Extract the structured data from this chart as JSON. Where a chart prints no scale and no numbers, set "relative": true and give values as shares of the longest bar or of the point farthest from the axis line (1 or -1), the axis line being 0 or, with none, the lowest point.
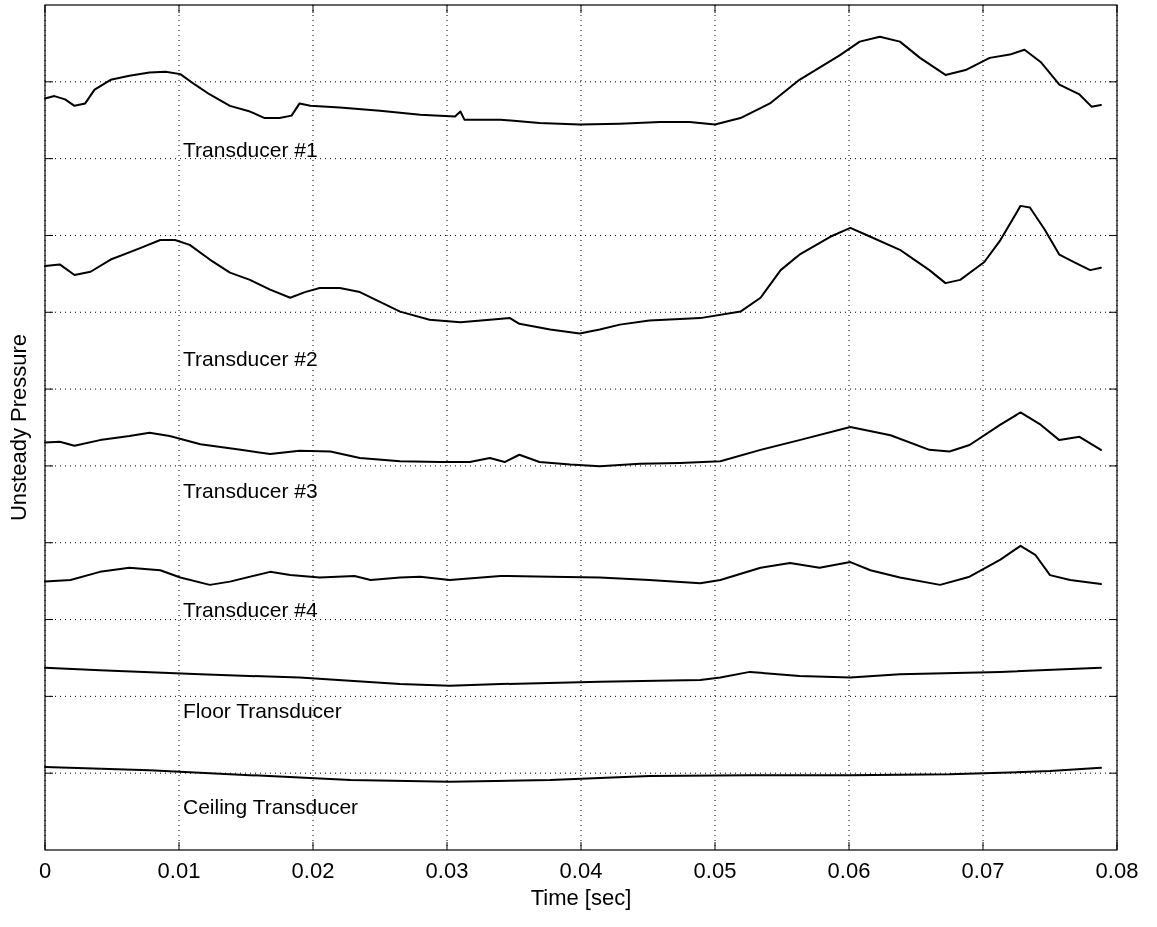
{
  "chart_data": {
    "type": "line",
    "xlabel": "Time [sec]",
    "ylabel": "Unsteady Pressure",
    "relative": true,
    "grid": true,
    "marker": "none",
    "line_style": "solid",
    "xlim": [
      0,
      0.08
    ],
    "xticks": [
      0,
      0.01,
      0.02,
      0.03,
      0.04,
      0.05,
      0.06,
      0.07,
      0.08
    ],
    "series": [
      {
        "name": "Transducer #1",
        "color": "#000000",
        "x": [
          0,
          0.0007,
          0.0015,
          0.0022,
          0.003,
          0.0037,
          0.0049,
          0.0063,
          0.0078,
          0.009,
          0.0101,
          0.0112,
          0.0123,
          0.0138,
          0.0153,
          0.0164,
          0.0175,
          0.0184,
          0.019,
          0.0198,
          0.022,
          0.025,
          0.028,
          0.0306,
          0.031,
          0.0313,
          0.034,
          0.0369,
          0.0399,
          0.0429,
          0.0459,
          0.0481,
          0.05,
          0.0519,
          0.0541,
          0.0563,
          0.0578,
          0.0593,
          0.0608,
          0.0623,
          0.0638,
          0.0653,
          0.0672,
          0.0687,
          0.0705,
          0.072,
          0.0731,
          0.0743,
          0.0757,
          0.0772,
          0.0781,
          0.0788
        ],
        "values": [
          0.924,
          0.927,
          0.923,
          0.915,
          0.918,
          0.935,
          0.947,
          0.952,
          0.956,
          0.957,
          0.954,
          0.941,
          0.929,
          0.915,
          0.908,
          0.9,
          0.9,
          0.903,
          0.918,
          0.915,
          0.913,
          0.909,
          0.904,
          0.902,
          0.908,
          0.898,
          0.898,
          0.894,
          0.892,
          0.893,
          0.895,
          0.895,
          0.892,
          0.9,
          0.918,
          0.947,
          0.962,
          0.977,
          0.994,
          1,
          0.994,
          0.974,
          0.953,
          0.959,
          0.974,
          0.978,
          0.984,
          0.969,
          0.941,
          0.929,
          0.914,
          0.916
        ]
      },
      {
        "name": "Transducer #2",
        "color": "#000000",
        "x": [
          0,
          0.0011,
          0.0022,
          0.0034,
          0.0049,
          0.0071,
          0.0086,
          0.0097,
          0.0108,
          0.0123,
          0.0138,
          0.0153,
          0.0168,
          0.0183,
          0.0194,
          0.0205,
          0.022,
          0.0235,
          0.025,
          0.0265,
          0.0287,
          0.031,
          0.0332,
          0.0347,
          0.0354,
          0.0377,
          0.0399,
          0.0414,
          0.0429,
          0.0451,
          0.0489,
          0.0519,
          0.0534,
          0.0549,
          0.0563,
          0.0586,
          0.0601,
          0.0616,
          0.0638,
          0.066,
          0.0672,
          0.0683,
          0.0701,
          0.0713,
          0.0728,
          0.0735,
          0.0746,
          0.0757,
          0.0769,
          0.078,
          0.0788
        ],
        "values": [
          0.718,
          0.72,
          0.707,
          0.711,
          0.726,
          0.74,
          0.75,
          0.75,
          0.744,
          0.726,
          0.71,
          0.701,
          0.689,
          0.679,
          0.686,
          0.691,
          0.691,
          0.686,
          0.674,
          0.662,
          0.652,
          0.649,
          0.652,
          0.654,
          0.647,
          0.64,
          0.635,
          0.64,
          0.646,
          0.651,
          0.654,
          0.662,
          0.679,
          0.713,
          0.732,
          0.754,
          0.765,
          0.754,
          0.738,
          0.713,
          0.697,
          0.701,
          0.723,
          0.75,
          0.792,
          0.79,
          0.763,
          0.732,
          0.722,
          0.713,
          0.716
        ]
      },
      {
        "name": "Transducer #3",
        "color": "#000000",
        "x": [
          0,
          0.0011,
          0.0022,
          0.0041,
          0.0063,
          0.0078,
          0.0093,
          0.0116,
          0.0146,
          0.0168,
          0.019,
          0.0213,
          0.0235,
          0.0265,
          0.0295,
          0.0317,
          0.0332,
          0.0343,
          0.0354,
          0.0369,
          0.0392,
          0.0414,
          0.0444,
          0.0474,
          0.0504,
          0.0534,
          0.0563,
          0.0601,
          0.0631,
          0.066,
          0.0675,
          0.069,
          0.0713,
          0.0728,
          0.0743,
          0.0757,
          0.0772,
          0.0788
        ],
        "values": [
          0.501,
          0.502,
          0.497,
          0.504,
          0.509,
          0.513,
          0.509,
          0.499,
          0.492,
          0.487,
          0.491,
          0.49,
          0.482,
          0.478,
          0.477,
          0.477,
          0.482,
          0.477,
          0.486,
          0.477,
          0.474,
          0.472,
          0.475,
          0.476,
          0.478,
          0.492,
          0.504,
          0.52,
          0.51,
          0.492,
          0.49,
          0.498,
          0.523,
          0.538,
          0.523,
          0.504,
          0.508,
          0.492
        ]
      },
      {
        "name": "Transducer #4",
        "color": "#000000",
        "x": [
          0,
          0.0019,
          0.0041,
          0.0063,
          0.0086,
          0.0101,
          0.0123,
          0.0138,
          0.0168,
          0.0183,
          0.0205,
          0.0231,
          0.0243,
          0.0265,
          0.028,
          0.0302,
          0.034,
          0.0377,
          0.0414,
          0.0451,
          0.0489,
          0.0504,
          0.0534,
          0.0556,
          0.0578,
          0.0601,
          0.0616,
          0.0638,
          0.0668,
          0.069,
          0.0713,
          0.0728,
          0.0739,
          0.075,
          0.0765,
          0.0788
        ],
        "values": [
          0.33,
          0.332,
          0.342,
          0.347,
          0.344,
          0.335,
          0.326,
          0.33,
          0.342,
          0.338,
          0.335,
          0.337,
          0.332,
          0.335,
          0.336,
          0.332,
          0.337,
          0.336,
          0.335,
          0.332,
          0.328,
          0.332,
          0.347,
          0.353,
          0.347,
          0.354,
          0.344,
          0.335,
          0.326,
          0.336,
          0.357,
          0.374,
          0.363,
          0.338,
          0.332,
          0.327
        ]
      },
      {
        "name": "Floor Transducer",
        "color": "#000000",
        "x": [
          0,
          0.0041,
          0.0116,
          0.019,
          0.0265,
          0.0302,
          0.034,
          0.0414,
          0.0489,
          0.0504,
          0.0526,
          0.0563,
          0.0601,
          0.0638,
          0.0713,
          0.0788
        ],
        "values": [
          0.224,
          0.221,
          0.216,
          0.212,
          0.204,
          0.202,
          0.204,
          0.207,
          0.209,
          0.212,
          0.219,
          0.214,
          0.212,
          0.216,
          0.219,
          0.224
        ]
      },
      {
        "name": "Ceiling Transducer",
        "color": "#000000",
        "x": [
          0,
          0.0078,
          0.0153,
          0.0228,
          0.0302,
          0.0377,
          0.0451,
          0.0526,
          0.0601,
          0.0675,
          0.075,
          0.0788
        ],
        "values": [
          0.102,
          0.098,
          0.092,
          0.086,
          0.084,
          0.086,
          0.091,
          0.092,
          0.092,
          0.093,
          0.097,
          0.101
        ]
      }
    ]
  }
}
